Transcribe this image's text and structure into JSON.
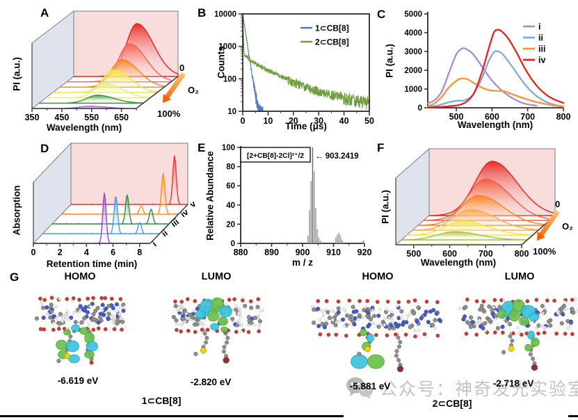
{
  "panels": {
    "A": {
      "label": "A",
      "xlabel": "Wavelength (nm)",
      "ylabel": "PI (a.u.)",
      "z_top": "0",
      "z_gas": "O₂",
      "z_bottom": "100%"
    },
    "B": {
      "label": "B",
      "xlabel": "Time (μs)",
      "ylabel": "Counts"
    },
    "C": {
      "label": "C",
      "xlabel": "Wavelength (nm)",
      "ylabel": "PI (a.u.)"
    },
    "D": {
      "label": "D",
      "xlabel": "Retention time (min)",
      "ylabel": "Absorption"
    },
    "E": {
      "label": "E",
      "xlabel": "m / z",
      "ylabel": "Relative Abundance",
      "annotation": "[2+CB[8]-2Cl]²⁺/2",
      "annotated_peak": "903.2419"
    },
    "F": {
      "label": "F",
      "xlabel": "Wavelength (nm)",
      "ylabel": "PI (a.u.)",
      "z_top": "0",
      "z_gas": "O₂",
      "z_bottom": "100%"
    },
    "G": {
      "label": "G",
      "columns": [
        "HOMO",
        "LUMO",
        "HOMO",
        "LUMO"
      ],
      "energies": [
        "-6.619 eV",
        "-2.820 eV",
        "-5.881 eV",
        "-2.718 eV"
      ],
      "compounds": [
        "1⊂CB[8]",
        "2⊂CB[8]"
      ]
    }
  },
  "watermark": {
    "icon": "wechat-icon",
    "text": "公众号：神奇发光实验室"
  },
  "chart_data": [
    {
      "id": "A",
      "type": "area",
      "subtype": "3d-waterfall-emission",
      "title": "",
      "xlabel": "Wavelength (nm)",
      "ylabel": "PI (a.u.)",
      "z_axis": {
        "label": "O₂",
        "from": "0",
        "to": "100%"
      },
      "x_range": [
        350,
        700
      ],
      "x_ticks": [
        350,
        450,
        550,
        650
      ],
      "sigma_nm": 36,
      "tail": 1.55,
      "order": "back-first",
      "series": [
        {
          "color": "#e8231f",
          "peak_nm": 562,
          "rel_intensity": 1.0
        },
        {
          "color": "#f4604d",
          "peak_nm": 560,
          "rel_intensity": 0.72
        },
        {
          "color": "#ff7f1e",
          "peak_nm": 558,
          "rel_intensity": 0.52
        },
        {
          "color": "#f2e73d",
          "peak_nm": 554,
          "rel_intensity": 0.43
        },
        {
          "color": "#e4ec86",
          "peak_nm": 550,
          "rel_intensity": 0.27
        },
        {
          "color": "#35953f",
          "peak_nm": 546,
          "rel_intensity": 0.15
        },
        {
          "color": "#9a57d3",
          "peak_nm": 542,
          "rel_intensity": 0.04
        }
      ]
    },
    {
      "id": "B",
      "type": "line",
      "subtype": "log-decay",
      "xlabel": "Time (μs)",
      "ylabel": "Counts",
      "x_range": [
        0,
        50
      ],
      "x_ticks": [
        0,
        10,
        20,
        30,
        40,
        50
      ],
      "y_scale": "log",
      "y_ticks": [
        10,
        100,
        1000,
        10000
      ],
      "series": [
        {
          "name": "1⊂CB[8]",
          "color": "#5578be",
          "points": [
            [
              0,
              10000
            ],
            [
              1,
              3100
            ],
            [
              2,
              950
            ],
            [
              3,
              300
            ],
            [
              4,
              95
            ],
            [
              5,
              35
            ],
            [
              6,
              15
            ],
            [
              7,
              10.5
            ],
            [
              8,
              10
            ]
          ]
        },
        {
          "name": "2⊂CB[8]",
          "color": "#6f9e3e",
          "points": [
            [
              0,
              10000
            ],
            [
              0.5,
              650
            ],
            [
              1,
              530
            ],
            [
              2,
              440
            ],
            [
              3,
              380
            ],
            [
              5,
              300
            ],
            [
              7,
              245
            ],
            [
              10,
              185
            ],
            [
              15,
              120
            ],
            [
              20,
              80
            ],
            [
              25,
              57
            ],
            [
              30,
              42
            ],
            [
              35,
              33
            ],
            [
              40,
              27
            ],
            [
              45,
              23
            ],
            [
              50,
              20
            ]
          ]
        }
      ]
    },
    {
      "id": "C",
      "type": "line",
      "subtype": "emission-spectra",
      "xlabel": "Wavelength (nm)",
      "ylabel": "PI (a.u.)",
      "x_range": [
        420,
        800
      ],
      "x_ticks": [
        500,
        600,
        700,
        800
      ],
      "y_ticks": [
        0,
        1000,
        2000,
        3000,
        4000,
        5000
      ],
      "ylim": [
        0,
        5000
      ],
      "legend_position": "top-right",
      "series": [
        {
          "name": "i",
          "color": "#a78bdb",
          "points": [
            [
              420,
              240
            ],
            [
              440,
              420
            ],
            [
              460,
              900
            ],
            [
              480,
              1900
            ],
            [
              500,
              2850
            ],
            [
              515,
              3140
            ],
            [
              525,
              3150
            ],
            [
              545,
              2900
            ],
            [
              570,
              2250
            ],
            [
              600,
              1450
            ],
            [
              630,
              880
            ],
            [
              660,
              480
            ],
            [
              690,
              230
            ],
            [
              725,
              110
            ]
          ]
        },
        {
          "name": "ii",
          "color": "#80a8e0",
          "points": [
            [
              420,
              40
            ],
            [
              450,
              130
            ],
            [
              480,
              300
            ],
            [
              505,
              380
            ],
            [
              520,
              390
            ],
            [
              545,
              650
            ],
            [
              570,
              1500
            ],
            [
              590,
              2450
            ],
            [
              605,
              2950
            ],
            [
              615,
              3010
            ],
            [
              630,
              2850
            ],
            [
              660,
              2100
            ],
            [
              690,
              1300
            ],
            [
              720,
              700
            ],
            [
              750,
              330
            ],
            [
              775,
              160
            ],
            [
              800,
              70
            ]
          ]
        },
        {
          "name": "iii",
          "color": "#ff9333",
          "points": [
            [
              420,
              80
            ],
            [
              440,
              250
            ],
            [
              460,
              600
            ],
            [
              480,
              1100
            ],
            [
              505,
              1500
            ],
            [
              520,
              1560
            ],
            [
              535,
              1480
            ],
            [
              555,
              1250
            ],
            [
              575,
              1050
            ],
            [
              595,
              930
            ],
            [
              615,
              900
            ],
            [
              635,
              870
            ],
            [
              660,
              700
            ],
            [
              690,
              500
            ],
            [
              720,
              330
            ],
            [
              750,
              200
            ],
            [
              775,
              120
            ],
            [
              800,
              60
            ]
          ]
        },
        {
          "name": "iv",
          "color": "#e8231f",
          "points": [
            [
              420,
              20
            ],
            [
              450,
              40
            ],
            [
              480,
              80
            ],
            [
              510,
              160
            ],
            [
              530,
              350
            ],
            [
              550,
              800
            ],
            [
              570,
              1800
            ],
            [
              590,
              3100
            ],
            [
              605,
              4000
            ],
            [
              615,
              4150
            ],
            [
              625,
              4100
            ],
            [
              645,
              3700
            ],
            [
              670,
              2900
            ],
            [
              695,
              2000
            ],
            [
              720,
              1300
            ],
            [
              745,
              800
            ],
            [
              770,
              480
            ],
            [
              800,
              260
            ]
          ]
        }
      ]
    },
    {
      "id": "D",
      "type": "line",
      "subtype": "3d-waterfall-chromatogram",
      "xlabel": "Retention time (min)",
      "ylabel": "Absorption",
      "x_range": [
        0,
        8.8
      ],
      "x_ticks": [
        0,
        2,
        4,
        6,
        8
      ],
      "peak_sigma_min": 0.13,
      "order": "front-first",
      "series": [
        {
          "name": "i",
          "color": "#8f45d6",
          "peaks": [
            [
              5.35,
              1.0
            ]
          ]
        },
        {
          "name": "ii",
          "color": "#41a0f5",
          "peaks": [
            [
              5.5,
              0.75
            ],
            [
              7.3,
              0.22
            ]
          ]
        },
        {
          "name": "iii",
          "color": "#2e8f45",
          "peaks": [
            [
              5.65,
              0.58
            ],
            [
              7.45,
              0.3
            ]
          ]
        },
        {
          "name": "iv",
          "color": "#ff8c1e",
          "peaks": [
            [
              6.0,
              0.17
            ],
            [
              7.65,
              0.82
            ]
          ]
        },
        {
          "name": "v",
          "color": "#f0372e",
          "peaks": [
            [
              7.8,
              0.97
            ]
          ]
        }
      ]
    },
    {
      "id": "E",
      "type": "bar",
      "subtype": "mass-spectrum",
      "xlabel": "m / z",
      "ylabel": "Relative Abundance",
      "x_range": [
        880,
        920
      ],
      "x_ticks": [
        880,
        890,
        900,
        910,
        920
      ],
      "y_ticks": [
        0,
        20,
        40,
        60,
        80,
        100
      ],
      "annotation": "[2+CB[8]-2Cl]²⁺/2",
      "annotated_peak": "903.2419",
      "peaks": [
        [
          901.75,
          8
        ],
        [
          902.25,
          35
        ],
        [
          902.75,
          65
        ],
        [
          903.25,
          100
        ],
        [
          903.75,
          75
        ],
        [
          904.25,
          37
        ],
        [
          904.75,
          15
        ],
        [
          905.25,
          6
        ],
        [
          905.75,
          3
        ],
        [
          910.75,
          6
        ],
        [
          911.25,
          9
        ],
        [
          911.75,
          11
        ],
        [
          912.25,
          8
        ],
        [
          912.75,
          4
        ],
        [
          919.25,
          2
        ],
        [
          919.75,
          3
        ]
      ]
    },
    {
      "id": "F",
      "type": "area",
      "subtype": "3d-waterfall-emission",
      "title": "",
      "xlabel": "Wavelength (nm)",
      "ylabel": "PI (a.u.)",
      "z_axis": {
        "label": "O₂",
        "from": "0",
        "to": "100%"
      },
      "x_range": [
        450,
        800
      ],
      "x_ticks": [
        500,
        600,
        700,
        800
      ],
      "sigma_nm": 48,
      "tail": 1.45,
      "order": "back-first",
      "series": [
        {
          "color": "#e8231f",
          "peak_nm": 625,
          "rel_intensity": 1.0
        },
        {
          "color": "#f25c3b",
          "peak_nm": 622,
          "rel_intensity": 0.76
        },
        {
          "color": "#ff7f1e",
          "peak_nm": 618,
          "rel_intensity": 0.55
        },
        {
          "color": "#ffa94d",
          "peak_nm": 612,
          "rel_intensity": 0.38
        },
        {
          "color": "#f2e73d",
          "peak_nm": 605,
          "rel_intensity": 0.26
        },
        {
          "color": "#9fc43c",
          "peak_nm": 598,
          "rel_intensity": 0.15
        },
        {
          "color": "#f3efad",
          "peak_nm": 592,
          "rel_intensity": 0.03
        }
      ]
    }
  ],
  "style_colors": {
    "back_wall": "#f9dcdc",
    "side_wall": "#dfe3ee",
    "axis": "#3d3d3d",
    "mass_bar": "#909090",
    "arrow_from": "#ffc36b",
    "arrow_to": "#f85f00"
  }
}
